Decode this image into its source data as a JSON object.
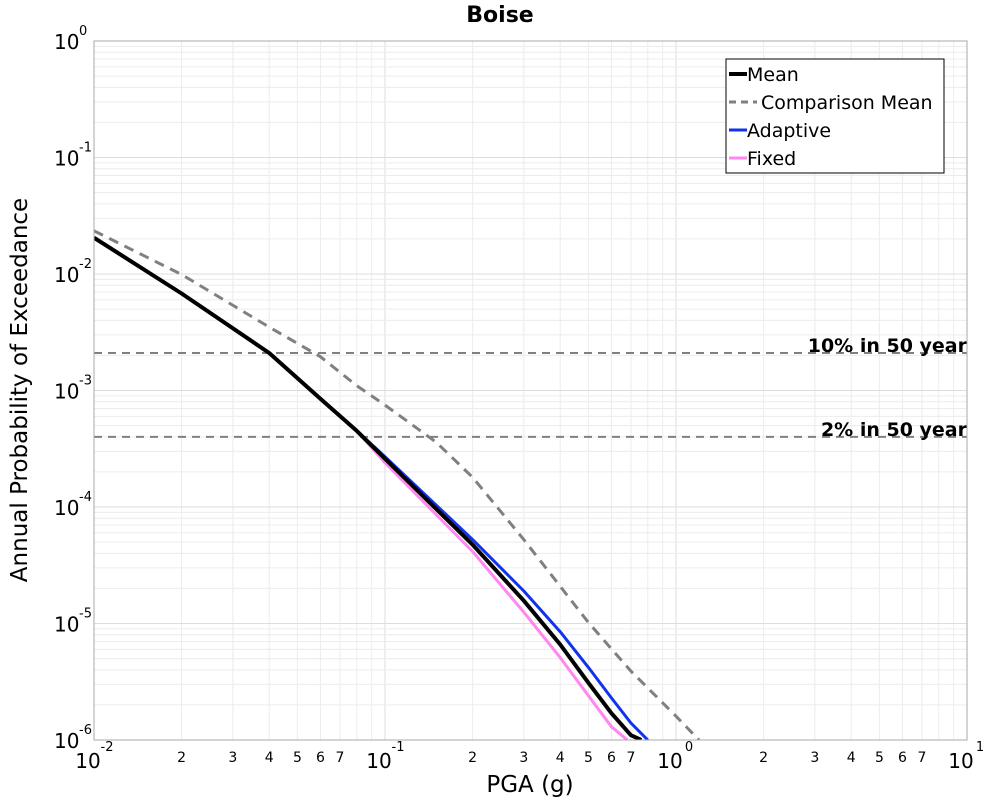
{
  "chart_data": {
    "type": "line",
    "title": "Boise",
    "xlabel": "PGA (g)",
    "ylabel": "Annual Probability of Exceedance",
    "xscale": "log",
    "yscale": "log",
    "xlim": [
      0.01,
      10
    ],
    "ylim": [
      1e-06,
      1
    ],
    "grid": true,
    "legend_position": "top-right",
    "x_tick_base": "10",
    "x_major_ticks": [
      {
        "value": 0.01,
        "exponent": "-2"
      },
      {
        "value": 0.1,
        "exponent": "-1"
      },
      {
        "value": 1,
        "exponent": "0"
      },
      {
        "value": 10,
        "exponent": "1"
      }
    ],
    "x_minor_ticks": [
      {
        "value": 0.02,
        "label": "2"
      },
      {
        "value": 0.03,
        "label": "3"
      },
      {
        "value": 0.04,
        "label": "4"
      },
      {
        "value": 0.05,
        "label": "5"
      },
      {
        "value": 0.06,
        "label": "6"
      },
      {
        "value": 0.07,
        "label": "7"
      },
      {
        "value": 0.2,
        "label": "2"
      },
      {
        "value": 0.3,
        "label": "3"
      },
      {
        "value": 0.4,
        "label": "4"
      },
      {
        "value": 0.5,
        "label": "5"
      },
      {
        "value": 0.6,
        "label": "6"
      },
      {
        "value": 0.7,
        "label": "7"
      },
      {
        "value": 2,
        "label": "2"
      },
      {
        "value": 3,
        "label": "3"
      },
      {
        "value": 4,
        "label": "4"
      },
      {
        "value": 5,
        "label": "5"
      },
      {
        "value": 6,
        "label": "6"
      },
      {
        "value": 7,
        "label": "7"
      }
    ],
    "y_major_ticks": [
      {
        "value": 1,
        "exponent": "0"
      },
      {
        "value": 0.1,
        "exponent": "-1"
      },
      {
        "value": 0.01,
        "exponent": "-2"
      },
      {
        "value": 0.001,
        "exponent": "-3"
      },
      {
        "value": 0.0001,
        "exponent": "-4"
      },
      {
        "value": 1e-05,
        "exponent": "-5"
      },
      {
        "value": 1e-06,
        "exponent": "-6"
      }
    ],
    "reference_lines": [
      {
        "label": "10% in 50 year",
        "y": 0.0021
      },
      {
        "label": "2% in 50 year",
        "y": 0.0004
      }
    ],
    "series": [
      {
        "name": "Mean",
        "color": "#000000",
        "dash": "solid",
        "width": 4,
        "points": [
          [
            0.01,
            0.0205
          ],
          [
            0.02,
            0.0068
          ],
          [
            0.04,
            0.0021
          ],
          [
            0.06,
            0.00085
          ],
          [
            0.08,
            0.00045
          ],
          [
            0.1,
            0.00026
          ],
          [
            0.2,
            4.75e-05
          ],
          [
            0.3,
            1.57e-05
          ],
          [
            0.4,
            6.6e-06
          ],
          [
            0.5,
            3.1e-06
          ],
          [
            0.6,
            1.7e-06
          ],
          [
            0.7,
            1.1e-06
          ],
          [
            0.76,
            1e-06
          ]
        ]
      },
      {
        "name": "Comparison Mean",
        "color": "#808080",
        "dash": "dashed",
        "width": 3,
        "points": [
          [
            0.01,
            0.0235
          ],
          [
            0.02,
            0.0099
          ],
          [
            0.04,
            0.0035
          ],
          [
            0.06,
            0.00195
          ],
          [
            0.08,
            0.0011
          ],
          [
            0.1,
            0.00075
          ],
          [
            0.15,
            0.00036
          ],
          [
            0.2,
            0.00018
          ],
          [
            0.3,
            5.25e-05
          ],
          [
            0.5,
            1.02e-05
          ],
          [
            0.7,
            3.9e-06
          ],
          [
            1,
            1.6e-06
          ],
          [
            1.2,
            1e-06
          ]
        ]
      },
      {
        "name": "Adaptive",
        "color": "#1133ee",
        "dash": "solid",
        "width": 3,
        "points": [
          [
            0.08,
            0.00045
          ],
          [
            0.1,
            0.00027
          ],
          [
            0.2,
            5.25e-05
          ],
          [
            0.3,
            1.9e-05
          ],
          [
            0.4,
            8.5e-06
          ],
          [
            0.5,
            4.2e-06
          ],
          [
            0.6,
            2.3e-06
          ],
          [
            0.7,
            1.4e-06
          ],
          [
            0.8,
            1e-06
          ]
        ]
      },
      {
        "name": "Fixed",
        "color": "#ff88ee",
        "dash": "solid",
        "width": 3,
        "points": [
          [
            0.08,
            0.00045
          ],
          [
            0.1,
            0.00024
          ],
          [
            0.2,
            4.15e-05
          ],
          [
            0.3,
            1.25e-05
          ],
          [
            0.4,
            5.1e-06
          ],
          [
            0.5,
            2.4e-06
          ],
          [
            0.6,
            1.3e-06
          ],
          [
            0.68,
            1e-06
          ]
        ]
      }
    ]
  }
}
